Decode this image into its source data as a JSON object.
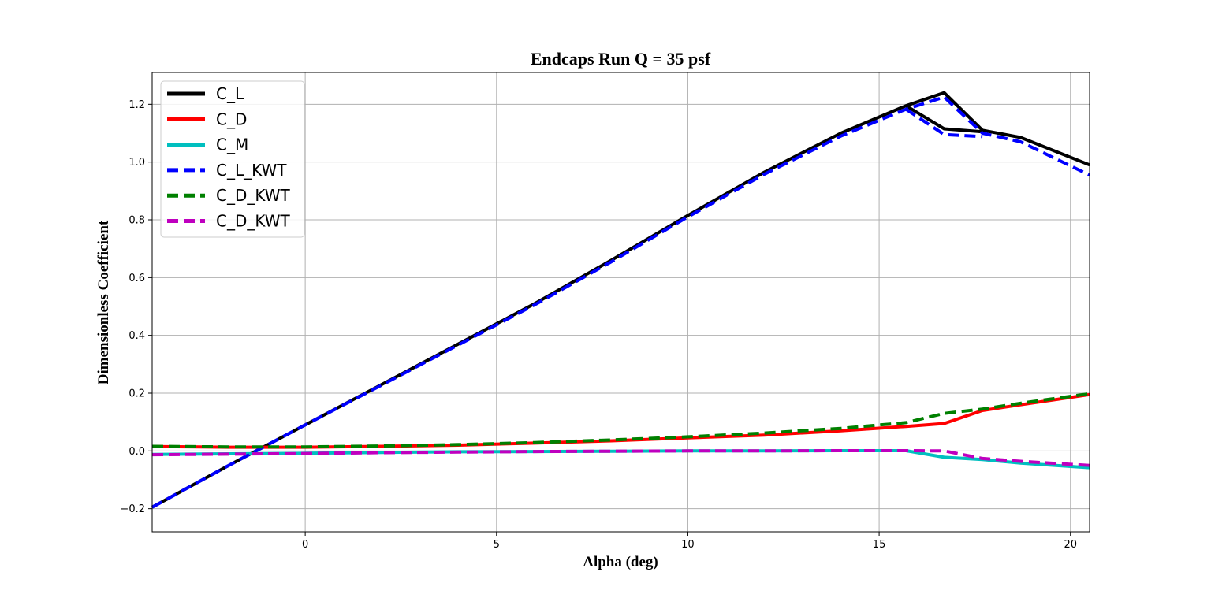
{
  "chart_data": {
    "type": "line",
    "title": "Endcaps Run Q = 35 psf",
    "xlabel": "Alpha (deg)",
    "ylabel": "Dimensionless Coefficient",
    "xlim": [
      -4.0,
      20.5
    ],
    "ylim": [
      -0.28,
      1.31
    ],
    "xticks": [
      0,
      5,
      10,
      15,
      20
    ],
    "xtick_labels": [
      "0",
      "5",
      "10",
      "15",
      "20"
    ],
    "yticks": [
      -0.2,
      0.0,
      0.2,
      0.4,
      0.6,
      0.8,
      1.0,
      1.2
    ],
    "ytick_labels": [
      "−0.2",
      "0.0",
      "0.2",
      "0.4",
      "0.6",
      "0.8",
      "1.0",
      "1.2"
    ],
    "grid": true,
    "legend_position": "top-left",
    "series": [
      {
        "name": "C_L",
        "color": "#000000",
        "style": "solid",
        "x": [
          -4.0,
          -2.0,
          0.0,
          2.0,
          4.0,
          6.0,
          8.0,
          10.0,
          12.0,
          14.0,
          15.7,
          16.7,
          17.7,
          18.7,
          20.5
        ],
        "y": [
          -0.195,
          -0.05,
          0.09,
          0.23,
          0.37,
          0.51,
          0.66,
          0.815,
          0.965,
          1.1,
          1.195,
          1.24,
          1.11,
          1.085,
          0.99
        ]
      },
      {
        "name": "C_L",
        "color": "#000000",
        "style": "solid",
        "x": [
          15.7,
          16.7,
          17.7
        ],
        "y": [
          1.195,
          1.115,
          1.105
        ]
      },
      {
        "name": "C_D",
        "color": "#ff0000",
        "style": "solid",
        "x": [
          -4.0,
          -2.0,
          0.0,
          2.0,
          4.0,
          6.0,
          8.0,
          10.0,
          12.0,
          14.0,
          15.7,
          16.7,
          17.7,
          18.7,
          20.5
        ],
        "y": [
          0.015,
          0.013,
          0.013,
          0.016,
          0.02,
          0.027,
          0.035,
          0.045,
          0.055,
          0.07,
          0.085,
          0.095,
          0.14,
          0.16,
          0.195
        ]
      },
      {
        "name": "C_M",
        "color": "#00bfbf",
        "style": "solid",
        "x": [
          -4.0,
          -2.0,
          0.0,
          2.0,
          4.0,
          6.0,
          8.0,
          10.0,
          12.0,
          14.0,
          15.7,
          16.7,
          17.7,
          18.7,
          20.5
        ],
        "y": [
          -0.012,
          -0.01,
          -0.008,
          -0.005,
          -0.003,
          -0.002,
          -0.001,
          0.0,
          0.0,
          0.001,
          0.001,
          -0.022,
          -0.03,
          -0.042,
          -0.058
        ]
      },
      {
        "name": "C_L_KWT",
        "color": "#0000ff",
        "style": "dashed",
        "x": [
          -4.0,
          -2.0,
          0.0,
          2.0,
          4.0,
          6.0,
          8.0,
          10.0,
          12.0,
          14.0,
          15.7,
          16.7,
          17.7,
          18.7,
          20.5
        ],
        "y": [
          -0.195,
          -0.05,
          0.09,
          0.228,
          0.367,
          0.506,
          0.655,
          0.81,
          0.958,
          1.09,
          1.183,
          1.225,
          1.1,
          1.07,
          0.955
        ]
      },
      {
        "name": "C_L_KWT",
        "color": "#0000ff",
        "style": "dashed",
        "x": [
          15.7,
          16.7,
          17.7
        ],
        "y": [
          1.183,
          1.095,
          1.088
        ]
      },
      {
        "name": "C_D_KWT",
        "color": "#008000",
        "style": "dashed",
        "x": [
          -4.0,
          -2.0,
          0.0,
          2.0,
          4.0,
          6.0,
          8.0,
          10.0,
          12.0,
          14.0,
          15.7,
          16.7,
          17.7,
          18.7,
          20.5
        ],
        "y": [
          0.016,
          0.014,
          0.014,
          0.017,
          0.022,
          0.029,
          0.038,
          0.049,
          0.062,
          0.078,
          0.098,
          0.13,
          0.145,
          0.165,
          0.198
        ]
      },
      {
        "name": "C_D_KWT",
        "color": "#bf00bf",
        "style": "dashed",
        "x": [
          -4.0,
          -2.0,
          0.0,
          2.0,
          4.0,
          6.0,
          8.0,
          10.0,
          12.0,
          14.0,
          15.7,
          16.7,
          17.7,
          18.7,
          20.5
        ],
        "y": [
          -0.013,
          -0.011,
          -0.009,
          -0.006,
          -0.004,
          -0.002,
          -0.001,
          0.0,
          0.0,
          0.001,
          0.001,
          0.0,
          -0.026,
          -0.036,
          -0.05
        ]
      }
    ],
    "legend": [
      {
        "label": "C_L",
        "color": "#000000",
        "style": "solid"
      },
      {
        "label": "C_D",
        "color": "#ff0000",
        "style": "solid"
      },
      {
        "label": "C_M",
        "color": "#00bfbf",
        "style": "solid"
      },
      {
        "label": "C_L_KWT",
        "color": "#0000ff",
        "style": "dashed"
      },
      {
        "label": "C_D_KWT",
        "color": "#008000",
        "style": "dashed"
      },
      {
        "label": "C_D_KWT",
        "color": "#bf00bf",
        "style": "dashed"
      }
    ]
  }
}
